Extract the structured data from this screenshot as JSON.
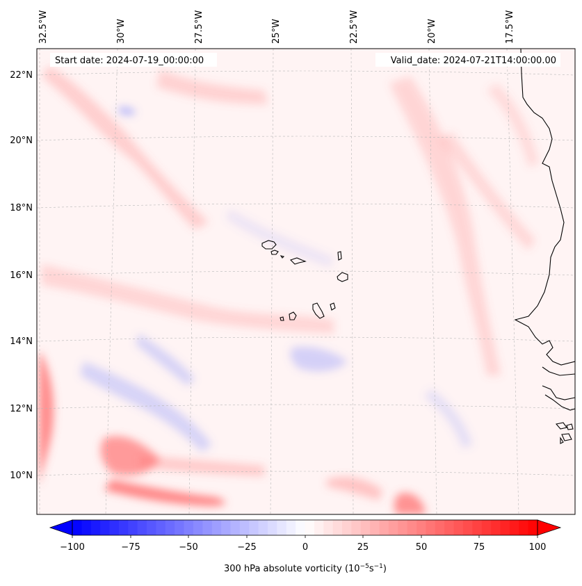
{
  "map": {
    "header": {
      "start_date": "Start date: 2024-07-19_00:00:00",
      "valid_date": "Valid_date: 2024-07-21T14:00:00.00"
    },
    "lon_labels": [
      "32.5°W",
      "30°W",
      "27.5°W",
      "25°W",
      "22.5°W",
      "20°W",
      "17.5°W"
    ],
    "lat_labels": [
      "22°N",
      "20°N",
      "18°N",
      "16°N",
      "14°N",
      "12°N",
      "10°N"
    ],
    "colorbar": {
      "ticks": [
        "−100",
        "−75",
        "−50",
        "−25",
        "0",
        "25",
        "50",
        "75",
        "100"
      ],
      "label_main": "300 hPa absolute vorticity (10",
      "label_exp1": "−5",
      "label_mid": "s",
      "label_exp2": "−1",
      "label_end": ")",
      "min": -100,
      "max": 100,
      "levels": 51,
      "color_negative": "#0000ff",
      "color_zero": "#ffffff",
      "color_positive": "#ff0000"
    },
    "field": {
      "background": "#fff4f4",
      "positive_color": "#ff6a6a",
      "negative_color": "#6f7dff"
    },
    "coastline_color": "#000000",
    "gridline_color": "#b7b7b7"
  }
}
